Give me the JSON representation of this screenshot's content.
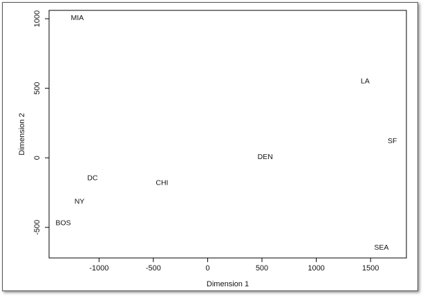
{
  "chart_data": {
    "type": "scatter",
    "title": "",
    "xlabel": "Dimension 1",
    "ylabel": "Dimension 2",
    "xlim": [
      -1460,
      1830
    ],
    "ylim": [
      -720,
      1060
    ],
    "xticks": [
      -1000,
      -500,
      0,
      500,
      1000,
      1500
    ],
    "yticks": [
      -500,
      0,
      500,
      1000
    ],
    "grid": false,
    "points": [
      {
        "label": "MIA",
        "x": -1200,
        "y": 1010
      },
      {
        "label": "LA",
        "x": 1450,
        "y": 555
      },
      {
        "label": "SF",
        "x": 1700,
        "y": 125
      },
      {
        "label": "DEN",
        "x": 530,
        "y": 10
      },
      {
        "label": "DC",
        "x": -1060,
        "y": -140
      },
      {
        "label": "CHI",
        "x": -420,
        "y": -175
      },
      {
        "label": "NY",
        "x": -1180,
        "y": -310
      },
      {
        "label": "BOS",
        "x": -1330,
        "y": -465
      },
      {
        "label": "SEA",
        "x": 1600,
        "y": -640
      }
    ]
  }
}
